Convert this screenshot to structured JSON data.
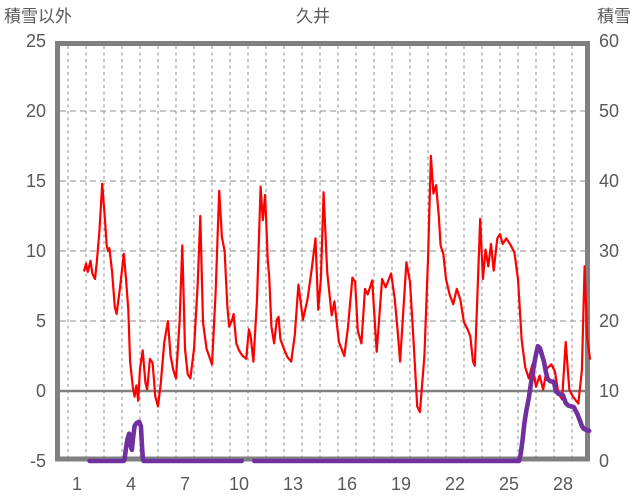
{
  "header": {
    "left_axis_title": "積雪以外",
    "chart_title": "久井",
    "right_axis_title": "積雪"
  },
  "colors": {
    "background": "#ffffff",
    "border": "#808080",
    "grid": "#8c8c8c",
    "zero_line": "#808080",
    "label": "#595959",
    "temperature_line": "#ff0000",
    "snow_line": "#7030a0"
  },
  "chart_data": {
    "type": "line",
    "title": "久井",
    "x_axis": {
      "tick_labels": [
        "1",
        "4",
        "7",
        "10",
        "13",
        "16",
        "19",
        "22",
        "25",
        "28"
      ],
      "tick_days": [
        1,
        4,
        7,
        10,
        13,
        16,
        19,
        22,
        25,
        28
      ],
      "day_range": [
        -0.2,
        29.5
      ],
      "gridline_every_days": 1,
      "grid_style": "dashed"
    },
    "left_axis": {
      "title": "積雪以外",
      "tick_labels": [
        "25",
        "20",
        "15",
        "10",
        "5",
        "0",
        "-5"
      ],
      "tick_values": [
        25,
        20,
        15,
        10,
        5,
        0,
        -5
      ],
      "range": [
        -5,
        25
      ]
    },
    "right_axis": {
      "title": "積雪",
      "tick_labels": [
        "60",
        "50",
        "40",
        "30",
        "20",
        "10",
        "0"
      ],
      "tick_values": [
        60,
        50,
        40,
        30,
        20,
        10,
        0
      ],
      "range": [
        0,
        60
      ]
    },
    "zero_line_left_value": 0,
    "horizontal_gridline_left_values": [
      20,
      15,
      10,
      5
    ],
    "series": [
      {
        "name": "積雪以外",
        "axis": "left",
        "color": "#ff0000",
        "width": 2.2,
        "segments": [
          [
            [
              1.4,
              8.6
            ],
            [
              1.5,
              9.1
            ],
            [
              1.6,
              8.5
            ],
            [
              1.75,
              9.3
            ],
            [
              1.85,
              8.4
            ],
            [
              2.0,
              8.0
            ],
            [
              2.1,
              9.2
            ],
            [
              2.25,
              11.5
            ],
            [
              2.4,
              14.8
            ],
            [
              2.55,
              12.3
            ],
            [
              2.65,
              10.4
            ],
            [
              2.72,
              10.0
            ],
            [
              2.8,
              10.2
            ],
            [
              2.95,
              8.5
            ],
            [
              3.1,
              6.0
            ],
            [
              3.2,
              5.5
            ],
            [
              3.4,
              7.5
            ],
            [
              3.6,
              9.8
            ],
            [
              3.72,
              8.0
            ],
            [
              3.85,
              5.8
            ],
            [
              3.95,
              2.1
            ],
            [
              4.1,
              0.3
            ],
            [
              4.2,
              -0.4
            ],
            [
              4.3,
              0.4
            ],
            [
              4.4,
              -0.7
            ],
            [
              4.5,
              1.6
            ],
            [
              4.65,
              2.9
            ],
            [
              4.8,
              0.6
            ],
            [
              4.9,
              0.1
            ],
            [
              5.05,
              2.3
            ],
            [
              5.2,
              2.0
            ],
            [
              5.35,
              -0.4
            ],
            [
              5.5,
              -1.1
            ],
            [
              5.65,
              0.5
            ],
            [
              5.85,
              3.5
            ],
            [
              6.05,
              5.0
            ],
            [
              6.2,
              2.5
            ],
            [
              6.35,
              1.5
            ],
            [
              6.5,
              0.9
            ],
            [
              6.7,
              5.0
            ],
            [
              6.85,
              10.4
            ],
            [
              7.0,
              3.0
            ],
            [
              7.15,
              1.2
            ],
            [
              7.3,
              0.9
            ],
            [
              7.5,
              3.0
            ],
            [
              7.7,
              7.5
            ],
            [
              7.85,
              12.5
            ],
            [
              8.0,
              4.9
            ],
            [
              8.2,
              3.0
            ],
            [
              8.5,
              1.9
            ],
            [
              8.7,
              7.0
            ],
            [
              8.9,
              14.3
            ],
            [
              9.05,
              11.0
            ],
            [
              9.2,
              10.0
            ],
            [
              9.35,
              6.1
            ],
            [
              9.45,
              4.6
            ],
            [
              9.6,
              5.0
            ],
            [
              9.7,
              5.5
            ],
            [
              9.85,
              3.4
            ],
            [
              10.0,
              2.9
            ],
            [
              10.2,
              2.5
            ],
            [
              10.4,
              2.3
            ],
            [
              10.55,
              4.4
            ],
            [
              10.65,
              3.9
            ],
            [
              10.8,
              2.1
            ],
            [
              11.0,
              6.5
            ],
            [
              11.2,
              14.6
            ],
            [
              11.32,
              12.2
            ],
            [
              11.45,
              14.0
            ],
            [
              11.6,
              9.3
            ],
            [
              11.68,
              8.2
            ],
            [
              11.8,
              4.6
            ],
            [
              11.95,
              3.4
            ],
            [
              12.1,
              5.1
            ],
            [
              12.2,
              5.3
            ],
            [
              12.3,
              3.7
            ],
            [
              12.5,
              3.0
            ],
            [
              12.7,
              2.4
            ],
            [
              12.9,
              2.1
            ],
            [
              13.1,
              4.0
            ],
            [
              13.3,
              7.6
            ],
            [
              13.45,
              6.1
            ],
            [
              13.55,
              5.1
            ],
            [
              13.8,
              6.5
            ],
            [
              14.05,
              8.8
            ],
            [
              14.25,
              10.9
            ],
            [
              14.4,
              5.8
            ],
            [
              14.55,
              8.0
            ],
            [
              14.7,
              14.2
            ],
            [
              14.9,
              8.5
            ],
            [
              15.15,
              5.4
            ],
            [
              15.3,
              6.4
            ],
            [
              15.55,
              3.5
            ],
            [
              15.85,
              2.5
            ],
            [
              16.05,
              4.5
            ],
            [
              16.3,
              8.1
            ],
            [
              16.45,
              7.8
            ],
            [
              16.6,
              4.3
            ],
            [
              16.8,
              3.4
            ],
            [
              17.0,
              7.3
            ],
            [
              17.15,
              6.9
            ],
            [
              17.4,
              7.9
            ],
            [
              17.65,
              2.8
            ],
            [
              17.95,
              8.0
            ],
            [
              18.15,
              7.4
            ],
            [
              18.45,
              8.4
            ],
            [
              18.65,
              6.6
            ],
            [
              18.8,
              4.5
            ],
            [
              18.95,
              2.1
            ],
            [
              19.3,
              9.2
            ],
            [
              19.5,
              7.8
            ],
            [
              19.7,
              3.5
            ],
            [
              19.9,
              -1.1
            ],
            [
              20.05,
              -1.5
            ],
            [
              20.3,
              2.5
            ],
            [
              20.5,
              9.4
            ],
            [
              20.66,
              16.8
            ],
            [
              20.8,
              14.1
            ],
            [
              20.95,
              14.7
            ],
            [
              21.1,
              12.5
            ],
            [
              21.2,
              10.4
            ],
            [
              21.35,
              9.8
            ],
            [
              21.5,
              8.0
            ],
            [
              21.7,
              6.9
            ],
            [
              21.9,
              6.2
            ],
            [
              22.1,
              7.3
            ],
            [
              22.3,
              6.5
            ],
            [
              22.5,
              4.9
            ],
            [
              22.7,
              4.4
            ],
            [
              22.85,
              3.9
            ],
            [
              23.0,
              2.1
            ],
            [
              23.1,
              1.8
            ],
            [
              23.4,
              12.3
            ],
            [
              23.55,
              8.0
            ],
            [
              23.7,
              10.1
            ],
            [
              23.85,
              8.9
            ],
            [
              24.0,
              10.5
            ],
            [
              24.15,
              8.6
            ],
            [
              24.35,
              10.9
            ],
            [
              24.5,
              11.2
            ],
            [
              24.65,
              10.5
            ],
            [
              24.85,
              10.9
            ],
            [
              25.1,
              10.4
            ],
            [
              25.3,
              9.9
            ],
            [
              25.5,
              8.0
            ],
            [
              25.7,
              3.7
            ],
            [
              25.9,
              1.7
            ],
            [
              26.1,
              0.9
            ],
            [
              26.3,
              1.9
            ],
            [
              26.5,
              0.3
            ],
            [
              26.7,
              1.1
            ],
            [
              26.9,
              0.1
            ],
            [
              27.1,
              1.6
            ],
            [
              27.35,
              1.9
            ],
            [
              27.55,
              1.4
            ],
            [
              27.75,
              -0.2
            ],
            [
              27.95,
              -0.6
            ],
            [
              28.15,
              3.5
            ],
            [
              28.35,
              0.1
            ],
            [
              28.55,
              -0.4
            ],
            [
              28.85,
              -0.9
            ],
            [
              29.05,
              1.5
            ],
            [
              29.2,
              8.9
            ],
            [
              29.35,
              3.7
            ],
            [
              29.5,
              2.3
            ]
          ]
        ]
      },
      {
        "name": "積雪",
        "axis": "right",
        "color": "#7030a0",
        "width": 4.6,
        "segments": [
          [
            [
              1.7,
              0
            ],
            [
              3.6,
              0
            ],
            [
              3.65,
              0.3
            ],
            [
              3.7,
              1.4
            ],
            [
              3.8,
              3.1
            ],
            [
              3.9,
              3.9
            ],
            [
              3.95,
              3.4
            ],
            [
              4.0,
              2.0
            ],
            [
              4.05,
              1.6
            ],
            [
              4.1,
              3.0
            ],
            [
              4.2,
              5.0
            ],
            [
              4.3,
              5.4
            ],
            [
              4.45,
              5.6
            ],
            [
              4.55,
              5.0
            ],
            [
              4.6,
              2.6
            ],
            [
              4.65,
              0.6
            ],
            [
              4.7,
              0
            ],
            [
              10.15,
              0
            ]
          ],
          [
            [
              10.85,
              0
            ],
            [
              25.55,
              0
            ],
            [
              25.65,
              1.0
            ],
            [
              25.75,
              2.9
            ],
            [
              25.85,
              5.3
            ],
            [
              25.95,
              7.0
            ],
            [
              26.1,
              9.0
            ],
            [
              26.25,
              11.6
            ],
            [
              26.45,
              14.6
            ],
            [
              26.6,
              16.4
            ],
            [
              26.72,
              16.1
            ],
            [
              26.85,
              15.0
            ],
            [
              26.95,
              14.1
            ],
            [
              27.05,
              12.7
            ],
            [
              27.15,
              11.7
            ],
            [
              27.3,
              11.4
            ],
            [
              27.5,
              11.3
            ],
            [
              27.6,
              10.0
            ],
            [
              27.75,
              9.6
            ],
            [
              28.0,
              9.4
            ],
            [
              28.15,
              8.3
            ],
            [
              28.3,
              7.9
            ],
            [
              28.6,
              7.7
            ],
            [
              28.8,
              6.7
            ],
            [
              28.95,
              5.7
            ],
            [
              29.05,
              5.0
            ],
            [
              29.15,
              4.6
            ],
            [
              29.45,
              4.3
            ]
          ]
        ]
      }
    ]
  }
}
